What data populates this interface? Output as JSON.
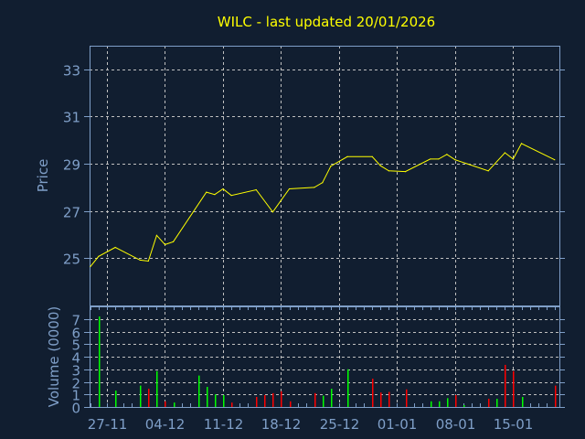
{
  "chart_data": [
    {
      "type": "line",
      "title": "WILC - last updated 20/01/2026",
      "ylabel": "Price",
      "ylim": [
        23,
        34
      ],
      "yticks": [
        25,
        27,
        29,
        31,
        33
      ],
      "grid": true,
      "color": "#ffff00",
      "points": [
        [
          "2025-11-25",
          24.65
        ],
        [
          "2025-11-26",
          25.08
        ],
        [
          "2025-11-28",
          25.46
        ],
        [
          "2025-12-01",
          24.92
        ],
        [
          "2025-12-02",
          24.88
        ],
        [
          "2025-12-03",
          25.97
        ],
        [
          "2025-12-04",
          25.58
        ],
        [
          "2025-12-05",
          25.7
        ],
        [
          "2025-12-09",
          27.8
        ],
        [
          "2025-12-10",
          27.7
        ],
        [
          "2025-12-11",
          27.94
        ],
        [
          "2025-12-12",
          27.66
        ],
        [
          "2025-12-15",
          27.9
        ],
        [
          "2025-12-17",
          26.96
        ],
        [
          "2025-12-19",
          27.94
        ],
        [
          "2025-12-22",
          28.0
        ],
        [
          "2025-12-23",
          28.2
        ],
        [
          "2025-12-24",
          28.9
        ],
        [
          "2025-12-26",
          29.3
        ],
        [
          "2025-12-29",
          29.3
        ],
        [
          "2025-12-30",
          28.92
        ],
        [
          "2025-12-31",
          28.7
        ],
        [
          "2026-01-02",
          28.67
        ],
        [
          "2026-01-05",
          29.2
        ],
        [
          "2026-01-06",
          29.2
        ],
        [
          "2026-01-07",
          29.4
        ],
        [
          "2026-01-08",
          29.17
        ],
        [
          "2026-01-12",
          28.7
        ],
        [
          "2026-01-14",
          29.47
        ],
        [
          "2026-01-15",
          29.2
        ],
        [
          "2026-01-16",
          29.86
        ],
        [
          "2026-01-20",
          29.17
        ]
      ]
    },
    {
      "type": "bar",
      "ylabel": "Volume (0000)",
      "ylim": [
        0,
        8
      ],
      "yticks": [
        0,
        1,
        2,
        3,
        4,
        5,
        6,
        7
      ],
      "grid": true,
      "up_color": "#00ff00",
      "down_color": "#ff0000",
      "xticks": [
        "27-11",
        "04-12",
        "11-12",
        "18-12",
        "25-12",
        "01-01",
        "08-01",
        "15-01"
      ],
      "bars": [
        [
          "2025-11-26",
          7.2,
          "up"
        ],
        [
          "2025-11-28",
          1.3,
          "up"
        ],
        [
          "2025-12-01",
          1.7,
          "up"
        ],
        [
          "2025-12-02",
          1.45,
          "down"
        ],
        [
          "2025-12-03",
          2.85,
          "up"
        ],
        [
          "2025-12-04",
          0.45,
          "down"
        ],
        [
          "2025-12-05",
          0.35,
          "up"
        ],
        [
          "2025-12-08",
          2.5,
          "up"
        ],
        [
          "2025-12-09",
          1.6,
          "up"
        ],
        [
          "2025-12-10",
          1.0,
          "up"
        ],
        [
          "2025-12-11",
          0.95,
          "up"
        ],
        [
          "2025-12-12",
          0.35,
          "down"
        ],
        [
          "2025-12-15",
          0.8,
          "down"
        ],
        [
          "2025-12-16",
          0.95,
          "down"
        ],
        [
          "2025-12-17",
          1.1,
          "down"
        ],
        [
          "2025-12-18",
          1.25,
          "down"
        ],
        [
          "2025-12-19",
          0.45,
          "down"
        ],
        [
          "2025-12-22",
          1.1,
          "down"
        ],
        [
          "2025-12-23",
          0.9,
          "up"
        ],
        [
          "2025-12-24",
          1.45,
          "up"
        ],
        [
          "2025-12-26",
          3.0,
          "up"
        ],
        [
          "2025-12-29",
          2.25,
          "down"
        ],
        [
          "2025-12-30",
          1.15,
          "down"
        ],
        [
          "2025-12-31",
          1.2,
          "down"
        ],
        [
          "2026-01-02",
          1.4,
          "down"
        ],
        [
          "2026-01-05",
          0.45,
          "up"
        ],
        [
          "2026-01-06",
          0.45,
          "up"
        ],
        [
          "2026-01-07",
          0.7,
          "up"
        ],
        [
          "2026-01-08",
          0.95,
          "down"
        ],
        [
          "2026-01-09",
          0.15,
          "up"
        ],
        [
          "2026-01-12",
          0.65,
          "down"
        ],
        [
          "2026-01-13",
          0.65,
          "up"
        ],
        [
          "2026-01-14",
          3.35,
          "down"
        ],
        [
          "2026-01-15",
          2.85,
          "down"
        ],
        [
          "2026-01-16",
          0.8,
          "up"
        ],
        [
          "2026-01-20",
          1.7,
          "down"
        ]
      ]
    }
  ]
}
